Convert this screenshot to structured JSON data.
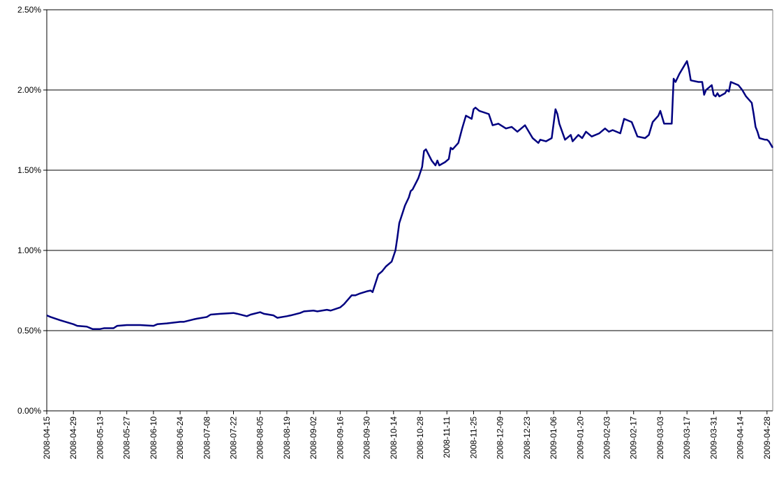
{
  "chart_data": {
    "type": "line",
    "x": [
      "2008-04-15",
      "2008-04-17",
      "2008-04-22",
      "2008-04-29",
      "2008-05-01",
      "2008-05-06",
      "2008-05-09",
      "2008-05-13",
      "2008-05-15",
      "2008-05-20",
      "2008-05-22",
      "2008-05-27",
      "2008-06-03",
      "2008-06-10",
      "2008-06-12",
      "2008-06-17",
      "2008-06-24",
      "2008-06-26",
      "2008-07-01",
      "2008-07-03",
      "2008-07-08",
      "2008-07-10",
      "2008-07-15",
      "2008-07-22",
      "2008-07-24",
      "2008-07-29",
      "2008-07-31",
      "2008-08-05",
      "2008-08-07",
      "2008-08-12",
      "2008-08-14",
      "2008-08-19",
      "2008-08-21",
      "2008-08-26",
      "2008-08-28",
      "2008-09-02",
      "2008-09-04",
      "2008-09-09",
      "2008-09-11",
      "2008-09-16",
      "2008-09-18",
      "2008-09-22",
      "2008-09-24",
      "2008-09-26",
      "2008-09-30",
      "2008-10-02",
      "2008-10-03",
      "2008-10-06",
      "2008-10-08",
      "2008-10-10",
      "2008-10-13",
      "2008-10-15",
      "2008-10-16",
      "2008-10-17",
      "2008-10-20",
      "2008-10-22",
      "2008-10-23",
      "2008-10-24",
      "2008-10-27",
      "2008-10-29",
      "2008-10-30",
      "2008-10-31",
      "2008-11-03",
      "2008-11-05",
      "2008-11-06",
      "2008-11-07",
      "2008-11-10",
      "2008-11-12",
      "2008-11-13",
      "2008-11-14",
      "2008-11-17",
      "2008-11-19",
      "2008-11-21",
      "2008-11-24",
      "2008-11-25",
      "2008-11-26",
      "2008-11-28",
      "2008-12-03",
      "2008-12-05",
      "2008-12-08",
      "2008-12-12",
      "2008-12-15",
      "2008-12-18",
      "2008-12-22",
      "2008-12-26",
      "2008-12-29",
      "2008-12-30",
      "2009-01-02",
      "2009-01-05",
      "2009-01-07",
      "2009-01-08",
      "2009-01-09",
      "2009-01-12",
      "2009-01-15",
      "2009-01-16",
      "2009-01-19",
      "2009-01-21",
      "2009-01-23",
      "2009-01-26",
      "2009-01-30",
      "2009-02-02",
      "2009-02-04",
      "2009-02-06",
      "2009-02-10",
      "2009-02-12",
      "2009-02-16",
      "2009-02-19",
      "2009-02-23",
      "2009-02-25",
      "2009-02-27",
      "2009-03-02",
      "2009-03-03",
      "2009-03-04",
      "2009-03-05",
      "2009-03-09",
      "2009-03-10",
      "2009-03-11",
      "2009-03-13",
      "2009-03-16",
      "2009-03-17",
      "2009-03-18",
      "2009-03-19",
      "2009-03-23",
      "2009-03-25",
      "2009-03-26",
      "2009-03-27",
      "2009-03-30",
      "2009-03-31",
      "2009-04-01",
      "2009-04-02",
      "2009-04-03",
      "2009-04-06",
      "2009-04-07",
      "2009-04-08",
      "2009-04-09",
      "2009-04-13",
      "2009-04-15",
      "2009-04-17",
      "2009-04-20",
      "2009-04-21",
      "2009-04-22",
      "2009-04-23",
      "2009-04-24",
      "2009-04-27",
      "2009-04-28",
      "2009-04-29",
      "2009-04-30",
      "2009-05-01"
    ],
    "series": [
      {
        "color": "#000080",
        "values": [
          0.595,
          0.585,
          0.565,
          0.54,
          0.53,
          0.525,
          0.51,
          0.51,
          0.515,
          0.515,
          0.53,
          0.535,
          0.535,
          0.53,
          0.54,
          0.545,
          0.555,
          0.555,
          0.57,
          0.575,
          0.585,
          0.6,
          0.605,
          0.61,
          0.605,
          0.59,
          0.6,
          0.615,
          0.605,
          0.595,
          0.58,
          0.59,
          0.595,
          0.61,
          0.62,
          0.625,
          0.62,
          0.63,
          0.625,
          0.645,
          0.665,
          0.72,
          0.72,
          0.73,
          0.745,
          0.75,
          0.74,
          0.85,
          0.87,
          0.9,
          0.93,
          1.0,
          1.08,
          1.17,
          1.28,
          1.33,
          1.37,
          1.38,
          1.45,
          1.52,
          1.62,
          1.63,
          1.56,
          1.53,
          1.56,
          1.53,
          1.55,
          1.57,
          1.64,
          1.63,
          1.67,
          1.76,
          1.84,
          1.82,
          1.88,
          1.89,
          1.87,
          1.85,
          1.78,
          1.79,
          1.76,
          1.77,
          1.74,
          1.78,
          1.7,
          1.67,
          1.69,
          1.68,
          1.7,
          1.88,
          1.85,
          1.79,
          1.69,
          1.72,
          1.68,
          1.72,
          1.7,
          1.74,
          1.71,
          1.73,
          1.76,
          1.74,
          1.75,
          1.73,
          1.82,
          1.8,
          1.71,
          1.7,
          1.72,
          1.8,
          1.84,
          1.87,
          1.83,
          1.79,
          1.79,
          2.07,
          2.05,
          2.1,
          2.16,
          2.18,
          2.13,
          2.06,
          2.05,
          2.05,
          1.97,
          2.0,
          2.03,
          1.97,
          1.96,
          1.98,
          1.96,
          1.98,
          2.0,
          1.99,
          2.05,
          2.03,
          2.0,
          1.96,
          1.92,
          1.85,
          1.77,
          1.74,
          1.7,
          1.69,
          1.69,
          1.68,
          1.66,
          1.64
        ]
      }
    ],
    "xlim": [
      "2008-04-15",
      "2009-05-01"
    ],
    "xticks": [
      "2008-04-15",
      "2008-04-29",
      "2008-05-13",
      "2008-05-27",
      "2008-06-10",
      "2008-06-24",
      "2008-07-08",
      "2008-07-22",
      "2008-08-05",
      "2008-08-19",
      "2008-09-02",
      "2008-09-16",
      "2008-09-30",
      "2008-10-14",
      "2008-10-28",
      "2008-11-11",
      "2008-11-25",
      "2008-12-09",
      "2008-12-23",
      "2009-01-06",
      "2009-01-20",
      "2009-02-03",
      "2009-02-17",
      "2009-03-03",
      "2009-03-17",
      "2009-03-31",
      "2009-04-14",
      "2009-04-28"
    ],
    "ylim": [
      0,
      2.5
    ],
    "yticks": [
      {
        "value": 0,
        "label": "0.00%"
      },
      {
        "value": 0.5,
        "label": "0.50%"
      },
      {
        "value": 1,
        "label": "1.00%"
      },
      {
        "value": 1.5,
        "label": "1.50%"
      },
      {
        "value": 2,
        "label": "2.00%"
      },
      {
        "value": 2.5,
        "label": "2.50%"
      }
    ],
    "grid": true
  }
}
